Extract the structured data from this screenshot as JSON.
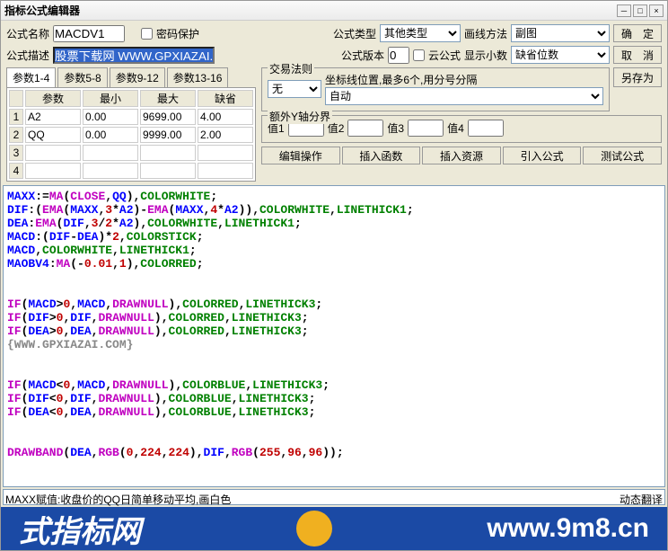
{
  "title": "指标公式编辑器",
  "labels": {
    "formula_name": "公式名称",
    "pwd_protect": "密码保护",
    "formula_type": "公式类型",
    "draw_method": "画线方法",
    "formula_desc": "公式描述",
    "formula_ver": "公式版本",
    "cloud": "云公式",
    "show_dec": "显示小数",
    "default_pos": "缺省位数"
  },
  "btns": {
    "ok": "确　定",
    "cancel": "取　消",
    "saveas": "另存为",
    "edit_op": "编辑操作",
    "ins_func": "插入函数",
    "ins_res": "插入资源",
    "import": "引入公式",
    "test": "测试公式"
  },
  "formula_type_val": "其他类型",
  "draw_method_val": "副图",
  "name_val": "MACDV1",
  "desc_val": "股票下载网 WWW.GPXIAZAI.COM",
  "ver_val": "0",
  "param_tabs": [
    "参数1-4",
    "参数5-8",
    "参数9-12",
    "参数13-16"
  ],
  "param_headers": [
    "",
    "参数",
    "最小",
    "最大",
    "缺省"
  ],
  "params": [
    {
      "n": "1",
      "name": "A2",
      "min": "0.00",
      "max": "9699.00",
      "def": "4.00"
    },
    {
      "n": "2",
      "name": "QQ",
      "min": "0.00",
      "max": "9999.00",
      "def": "2.00"
    },
    {
      "n": "3",
      "name": "",
      "min": "",
      "max": "",
      "def": ""
    },
    {
      "n": "4",
      "name": "",
      "min": "",
      "max": "",
      "def": ""
    }
  ],
  "trade_rule": {
    "title": "交易法则",
    "hint": "坐标线位置,最多6个,用分号分隔",
    "none": "无",
    "auto": "自动"
  },
  "yaxis": {
    "title": "额外Y轴分界",
    "v1": "值1",
    "v2": "值2",
    "v3": "值3",
    "v4": "值4"
  },
  "status": {
    "left": "MAXX赋值:收盘价的QQ日简单移动平均,画白色",
    "right": "动态翻译"
  },
  "wm": {
    "left": "式指标网",
    "right": "www.9m8.cn"
  },
  "code_lines": [
    [
      {
        "t": "MAXX",
        "c": "c-blue"
      },
      {
        "t": ":=",
        "c": "c-black"
      },
      {
        "t": "MA",
        "c": "c-fuchsia"
      },
      {
        "t": "(",
        "c": "c-black"
      },
      {
        "t": "CLOSE",
        "c": "c-fuchsia"
      },
      {
        "t": ",",
        "c": "c-black"
      },
      {
        "t": "QQ",
        "c": "c-blue"
      },
      {
        "t": "),",
        "c": "c-black"
      },
      {
        "t": "COLORWHITE",
        "c": "c-green"
      },
      {
        "t": ";",
        "c": "c-black"
      }
    ],
    [
      {
        "t": "DIF",
        "c": "c-blue"
      },
      {
        "t": ":(",
        "c": "c-black"
      },
      {
        "t": "EMA",
        "c": "c-fuchsia"
      },
      {
        "t": "(",
        "c": "c-black"
      },
      {
        "t": "MAXX",
        "c": "c-blue"
      },
      {
        "t": ",",
        "c": "c-black"
      },
      {
        "t": "3",
        "c": "c-red"
      },
      {
        "t": "*",
        "c": "c-black"
      },
      {
        "t": "A2",
        "c": "c-blue"
      },
      {
        "t": ")-",
        "c": "c-black"
      },
      {
        "t": "EMA",
        "c": "c-fuchsia"
      },
      {
        "t": "(",
        "c": "c-black"
      },
      {
        "t": "MAXX",
        "c": "c-blue"
      },
      {
        "t": ",",
        "c": "c-black"
      },
      {
        "t": "4",
        "c": "c-red"
      },
      {
        "t": "*",
        "c": "c-black"
      },
      {
        "t": "A2",
        "c": "c-blue"
      },
      {
        "t": ")),",
        "c": "c-black"
      },
      {
        "t": "COLORWHITE",
        "c": "c-green"
      },
      {
        "t": ",",
        "c": "c-black"
      },
      {
        "t": "LINETHICK1",
        "c": "c-green"
      },
      {
        "t": ";",
        "c": "c-black"
      }
    ],
    [
      {
        "t": "DEA",
        "c": "c-blue"
      },
      {
        "t": ":",
        "c": "c-black"
      },
      {
        "t": "EMA",
        "c": "c-fuchsia"
      },
      {
        "t": "(",
        "c": "c-black"
      },
      {
        "t": "DIF",
        "c": "c-blue"
      },
      {
        "t": ",",
        "c": "c-black"
      },
      {
        "t": "3",
        "c": "c-red"
      },
      {
        "t": "/",
        "c": "c-black"
      },
      {
        "t": "2",
        "c": "c-red"
      },
      {
        "t": "*",
        "c": "c-black"
      },
      {
        "t": "A2",
        "c": "c-blue"
      },
      {
        "t": "),",
        "c": "c-black"
      },
      {
        "t": "COLORWHITE",
        "c": "c-green"
      },
      {
        "t": ",",
        "c": "c-black"
      },
      {
        "t": "LINETHICK1",
        "c": "c-green"
      },
      {
        "t": ";",
        "c": "c-black"
      }
    ],
    [
      {
        "t": "MACD",
        "c": "c-blue"
      },
      {
        "t": ":(",
        "c": "c-black"
      },
      {
        "t": "DIF",
        "c": "c-blue"
      },
      {
        "t": "-",
        "c": "c-black"
      },
      {
        "t": "DEA",
        "c": "c-blue"
      },
      {
        "t": ")*",
        "c": "c-black"
      },
      {
        "t": "2",
        "c": "c-red"
      },
      {
        "t": ",",
        "c": "c-black"
      },
      {
        "t": "COLORSTICK",
        "c": "c-green"
      },
      {
        "t": ";",
        "c": "c-black"
      }
    ],
    [
      {
        "t": "MACD",
        "c": "c-blue"
      },
      {
        "t": ",",
        "c": "c-black"
      },
      {
        "t": "COLORWHITE",
        "c": "c-green"
      },
      {
        "t": ",",
        "c": "c-black"
      },
      {
        "t": "LINETHICK1",
        "c": "c-green"
      },
      {
        "t": ";",
        "c": "c-black"
      }
    ],
    [
      {
        "t": "MAOBV4",
        "c": "c-blue"
      },
      {
        "t": ":",
        "c": "c-black"
      },
      {
        "t": "MA",
        "c": "c-fuchsia"
      },
      {
        "t": "(-",
        "c": "c-black"
      },
      {
        "t": "0.01",
        "c": "c-red"
      },
      {
        "t": ",",
        "c": "c-black"
      },
      {
        "t": "1",
        "c": "c-red"
      },
      {
        "t": "),",
        "c": "c-black"
      },
      {
        "t": "COLORRED",
        "c": "c-green"
      },
      {
        "t": ";",
        "c": "c-black"
      }
    ],
    [],
    [],
    [
      {
        "t": "IF",
        "c": "c-fuchsia"
      },
      {
        "t": "(",
        "c": "c-black"
      },
      {
        "t": "MACD",
        "c": "c-blue"
      },
      {
        "t": ">",
        "c": "c-black"
      },
      {
        "t": "0",
        "c": "c-red"
      },
      {
        "t": ",",
        "c": "c-black"
      },
      {
        "t": "MACD",
        "c": "c-blue"
      },
      {
        "t": ",",
        "c": "c-black"
      },
      {
        "t": "DRAWNULL",
        "c": "c-fuchsia"
      },
      {
        "t": "),",
        "c": "c-black"
      },
      {
        "t": "COLORRED",
        "c": "c-green"
      },
      {
        "t": ",",
        "c": "c-black"
      },
      {
        "t": "LINETHICK3",
        "c": "c-green"
      },
      {
        "t": ";",
        "c": "c-black"
      }
    ],
    [
      {
        "t": "IF",
        "c": "c-fuchsia"
      },
      {
        "t": "(",
        "c": "c-black"
      },
      {
        "t": "DIF",
        "c": "c-blue"
      },
      {
        "t": ">",
        "c": "c-black"
      },
      {
        "t": "0",
        "c": "c-red"
      },
      {
        "t": ",",
        "c": "c-black"
      },
      {
        "t": "DIF",
        "c": "c-blue"
      },
      {
        "t": ",",
        "c": "c-black"
      },
      {
        "t": "DRAWNULL",
        "c": "c-fuchsia"
      },
      {
        "t": "),",
        "c": "c-black"
      },
      {
        "t": "COLORRED",
        "c": "c-green"
      },
      {
        "t": ",",
        "c": "c-black"
      },
      {
        "t": "LINETHICK3",
        "c": "c-green"
      },
      {
        "t": ";",
        "c": "c-black"
      }
    ],
    [
      {
        "t": "IF",
        "c": "c-fuchsia"
      },
      {
        "t": "(",
        "c": "c-black"
      },
      {
        "t": "DEA",
        "c": "c-blue"
      },
      {
        "t": ">",
        "c": "c-black"
      },
      {
        "t": "0",
        "c": "c-red"
      },
      {
        "t": ",",
        "c": "c-black"
      },
      {
        "t": "DEA",
        "c": "c-blue"
      },
      {
        "t": ",",
        "c": "c-black"
      },
      {
        "t": "DRAWNULL",
        "c": "c-fuchsia"
      },
      {
        "t": "),",
        "c": "c-black"
      },
      {
        "t": "COLORRED",
        "c": "c-green"
      },
      {
        "t": ",",
        "c": "c-black"
      },
      {
        "t": "LINETHICK3",
        "c": "c-green"
      },
      {
        "t": ";",
        "c": "c-black"
      }
    ],
    [
      {
        "t": "{WWW.GPXIAZAI.COM}",
        "c": "c-gray"
      }
    ],
    [],
    [],
    [
      {
        "t": "IF",
        "c": "c-fuchsia"
      },
      {
        "t": "(",
        "c": "c-black"
      },
      {
        "t": "MACD",
        "c": "c-blue"
      },
      {
        "t": "<",
        "c": "c-black"
      },
      {
        "t": "0",
        "c": "c-red"
      },
      {
        "t": ",",
        "c": "c-black"
      },
      {
        "t": "MACD",
        "c": "c-blue"
      },
      {
        "t": ",",
        "c": "c-black"
      },
      {
        "t": "DRAWNULL",
        "c": "c-fuchsia"
      },
      {
        "t": "),",
        "c": "c-black"
      },
      {
        "t": "COLORBLUE",
        "c": "c-green"
      },
      {
        "t": ",",
        "c": "c-black"
      },
      {
        "t": "LINETHICK3",
        "c": "c-green"
      },
      {
        "t": ";",
        "c": "c-black"
      }
    ],
    [
      {
        "t": "IF",
        "c": "c-fuchsia"
      },
      {
        "t": "(",
        "c": "c-black"
      },
      {
        "t": "DIF",
        "c": "c-blue"
      },
      {
        "t": "<",
        "c": "c-black"
      },
      {
        "t": "0",
        "c": "c-red"
      },
      {
        "t": ",",
        "c": "c-black"
      },
      {
        "t": "DIF",
        "c": "c-blue"
      },
      {
        "t": ",",
        "c": "c-black"
      },
      {
        "t": "DRAWNULL",
        "c": "c-fuchsia"
      },
      {
        "t": "),",
        "c": "c-black"
      },
      {
        "t": "COLORBLUE",
        "c": "c-green"
      },
      {
        "t": ",",
        "c": "c-black"
      },
      {
        "t": "LINETHICK3",
        "c": "c-green"
      },
      {
        "t": ";",
        "c": "c-black"
      }
    ],
    [
      {
        "t": "IF",
        "c": "c-fuchsia"
      },
      {
        "t": "(",
        "c": "c-black"
      },
      {
        "t": "DEA",
        "c": "c-blue"
      },
      {
        "t": "<",
        "c": "c-black"
      },
      {
        "t": "0",
        "c": "c-red"
      },
      {
        "t": ",",
        "c": "c-black"
      },
      {
        "t": "DEA",
        "c": "c-blue"
      },
      {
        "t": ",",
        "c": "c-black"
      },
      {
        "t": "DRAWNULL",
        "c": "c-fuchsia"
      },
      {
        "t": "),",
        "c": "c-black"
      },
      {
        "t": "COLORBLUE",
        "c": "c-green"
      },
      {
        "t": ",",
        "c": "c-black"
      },
      {
        "t": "LINETHICK3",
        "c": "c-green"
      },
      {
        "t": ";",
        "c": "c-black"
      }
    ],
    [],
    [],
    [
      {
        "t": "DRAWBAND",
        "c": "c-fuchsia"
      },
      {
        "t": "(",
        "c": "c-black"
      },
      {
        "t": "DEA",
        "c": "c-blue"
      },
      {
        "t": ",",
        "c": "c-black"
      },
      {
        "t": "RGB",
        "c": "c-fuchsia"
      },
      {
        "t": "(",
        "c": "c-black"
      },
      {
        "t": "0",
        "c": "c-red"
      },
      {
        "t": ",",
        "c": "c-black"
      },
      {
        "t": "224",
        "c": "c-red"
      },
      {
        "t": ",",
        "c": "c-black"
      },
      {
        "t": "224",
        "c": "c-red"
      },
      {
        "t": "),",
        "c": "c-black"
      },
      {
        "t": "DIF",
        "c": "c-blue"
      },
      {
        "t": ",",
        "c": "c-black"
      },
      {
        "t": "RGB",
        "c": "c-fuchsia"
      },
      {
        "t": "(",
        "c": "c-black"
      },
      {
        "t": "255",
        "c": "c-red"
      },
      {
        "t": ",",
        "c": "c-black"
      },
      {
        "t": "96",
        "c": "c-red"
      },
      {
        "t": ",",
        "c": "c-black"
      },
      {
        "t": "96",
        "c": "c-red"
      },
      {
        "t": "));",
        "c": "c-black"
      }
    ]
  ]
}
